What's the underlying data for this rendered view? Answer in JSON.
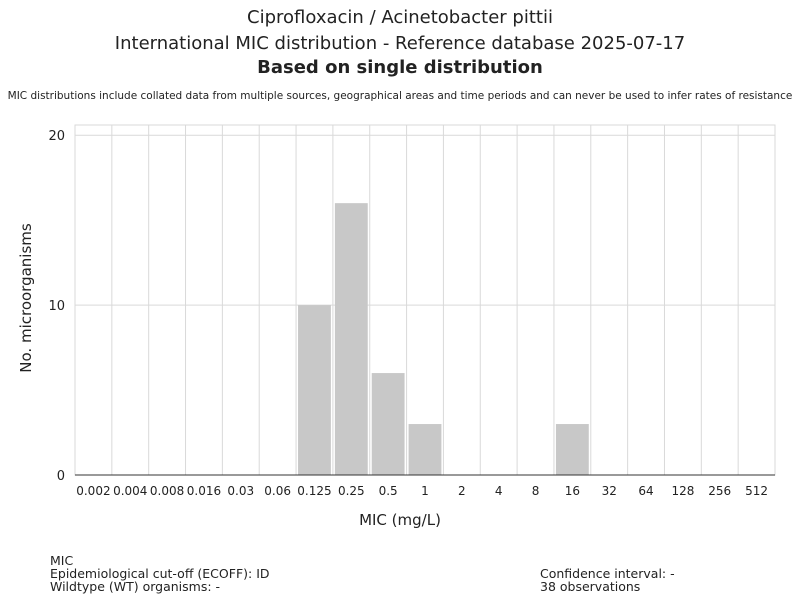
{
  "header": {
    "line1": "Ciprofloxacin / Acinetobacter pittii",
    "line2": "International MIC distribution - Reference database 2025-07-17",
    "line3": "Based on single distribution",
    "note": "MIC distributions include collated data from multiple sources, geographical areas and time periods and can never be used to infer rates of resistance"
  },
  "chart_data": {
    "type": "bar",
    "title": "",
    "xlabel": "MIC (mg/L)",
    "ylabel": "No. microorganisms",
    "categories": [
      "0.002",
      "0.004",
      "0.008",
      "0.016",
      "0.03",
      "0.06",
      "0.125",
      "0.25",
      "0.5",
      "1",
      "2",
      "4",
      "8",
      "16",
      "32",
      "64",
      "128",
      "256",
      "512"
    ],
    "values": [
      0,
      0,
      0,
      0,
      0,
      0,
      10,
      16,
      6,
      3,
      0,
      0,
      0,
      3,
      0,
      0,
      0,
      0,
      0
    ],
    "ylim": [
      0,
      20.6
    ],
    "yticks": [
      0,
      10,
      20
    ],
    "grid": true,
    "bar_color": "#c8c8c8",
    "grid_color": "#d9d9d9"
  },
  "footer": {
    "mic": "MIC",
    "ecoff": "Epidemiological cut-off (ECOFF): ID",
    "wt": "Wildtype (WT) organisms:  -",
    "ci": "Confidence interval: -",
    "obs": "38 observations"
  }
}
